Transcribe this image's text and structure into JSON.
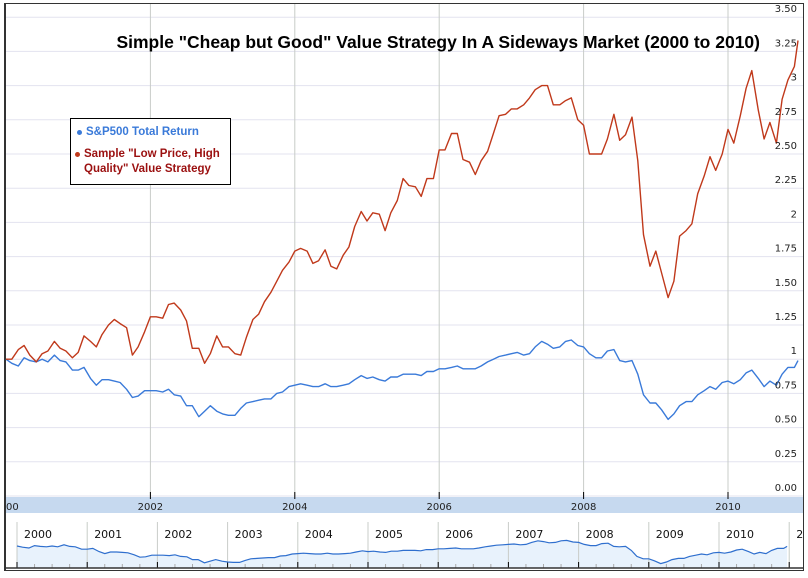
{
  "chart_data": {
    "type": "line",
    "title": "Simple \"Cheap but Good\" Value Strategy In A Sideways Market (2000 to 2010)",
    "xlabel": "",
    "ylabel": "",
    "xlim": [
      2000,
      2010.95
    ],
    "ylim": [
      0,
      3.5
    ],
    "grid": true,
    "legend_position": "left",
    "y_ticks": [
      {
        "value": 0,
        "label": "0.00"
      },
      {
        "value": 0.25,
        "label": "0.25"
      },
      {
        "value": 0.5,
        "label": "0.50"
      },
      {
        "value": 0.75,
        "label": "0.75"
      },
      {
        "value": 1,
        "label": "1"
      },
      {
        "value": 1.25,
        "label": "1.25"
      },
      {
        "value": 1.5,
        "label": "1.50"
      },
      {
        "value": 1.75,
        "label": "1.75"
      },
      {
        "value": 2,
        "label": "2"
      },
      {
        "value": 2.25,
        "label": "2.25"
      },
      {
        "value": 2.5,
        "label": "2.50"
      },
      {
        "value": 2.75,
        "label": "2.75"
      },
      {
        "value": 3,
        "label": "3"
      },
      {
        "value": 3.25,
        "label": "3.25"
      },
      {
        "value": 3.5,
        "label": "3.50"
      }
    ],
    "x_ticks": [
      {
        "value": 2000,
        "label": "00"
      },
      {
        "value": 2002,
        "label": "2002"
      },
      {
        "value": 2004,
        "label": "2004"
      },
      {
        "value": 2006,
        "label": "2006"
      },
      {
        "value": 2008,
        "label": "2008"
      },
      {
        "value": 2010,
        "label": "2010"
      }
    ],
    "navigator_ticks": [
      "2000",
      "2001",
      "2002",
      "2003",
      "2004",
      "2005",
      "2006",
      "2007",
      "2008",
      "2009",
      "2010",
      "2"
    ],
    "series": [
      {
        "name": "S&P500 Total Return",
        "color": "#3a7ad9",
        "points": [
          [
            2000.0,
            1.0
          ],
          [
            2000.08,
            0.97
          ],
          [
            2000.17,
            0.95
          ],
          [
            2000.25,
            1.01
          ],
          [
            2000.33,
            0.99
          ],
          [
            2000.42,
            0.98
          ],
          [
            2000.5,
            1.0
          ],
          [
            2000.58,
            0.98
          ],
          [
            2000.67,
            1.03
          ],
          [
            2000.75,
            0.99
          ],
          [
            2000.83,
            0.98
          ],
          [
            2000.92,
            0.92
          ],
          [
            2001.0,
            0.92
          ],
          [
            2001.08,
            0.94
          ],
          [
            2001.17,
            0.86
          ],
          [
            2001.25,
            0.81
          ],
          [
            2001.33,
            0.85
          ],
          [
            2001.42,
            0.85
          ],
          [
            2001.5,
            0.84
          ],
          [
            2001.58,
            0.83
          ],
          [
            2001.67,
            0.78
          ],
          [
            2001.75,
            0.72
          ],
          [
            2001.83,
            0.73
          ],
          [
            2001.92,
            0.77
          ],
          [
            2002.0,
            0.77
          ],
          [
            2002.08,
            0.77
          ],
          [
            2002.17,
            0.76
          ],
          [
            2002.25,
            0.78
          ],
          [
            2002.33,
            0.74
          ],
          [
            2002.42,
            0.73
          ],
          [
            2002.5,
            0.66
          ],
          [
            2002.58,
            0.66
          ],
          [
            2002.67,
            0.58
          ],
          [
            2002.75,
            0.62
          ],
          [
            2002.83,
            0.66
          ],
          [
            2002.92,
            0.62
          ],
          [
            2003.0,
            0.6
          ],
          [
            2003.08,
            0.59
          ],
          [
            2003.17,
            0.59
          ],
          [
            2003.25,
            0.64
          ],
          [
            2003.33,
            0.68
          ],
          [
            2003.42,
            0.69
          ],
          [
            2003.5,
            0.7
          ],
          [
            2003.58,
            0.71
          ],
          [
            2003.67,
            0.71
          ],
          [
            2003.75,
            0.75
          ],
          [
            2003.83,
            0.76
          ],
          [
            2003.92,
            0.8
          ],
          [
            2004.0,
            0.81
          ],
          [
            2004.08,
            0.82
          ],
          [
            2004.17,
            0.81
          ],
          [
            2004.25,
            0.8
          ],
          [
            2004.33,
            0.8
          ],
          [
            2004.42,
            0.82
          ],
          [
            2004.5,
            0.8
          ],
          [
            2004.58,
            0.8
          ],
          [
            2004.67,
            0.81
          ],
          [
            2004.75,
            0.82
          ],
          [
            2004.83,
            0.85
          ],
          [
            2004.92,
            0.88
          ],
          [
            2005.0,
            0.86
          ],
          [
            2005.08,
            0.87
          ],
          [
            2005.17,
            0.85
          ],
          [
            2005.25,
            0.84
          ],
          [
            2005.33,
            0.87
          ],
          [
            2005.42,
            0.87
          ],
          [
            2005.5,
            0.89
          ],
          [
            2005.58,
            0.89
          ],
          [
            2005.67,
            0.89
          ],
          [
            2005.75,
            0.88
          ],
          [
            2005.83,
            0.91
          ],
          [
            2005.92,
            0.91
          ],
          [
            2006.0,
            0.93
          ],
          [
            2006.08,
            0.93
          ],
          [
            2006.17,
            0.94
          ],
          [
            2006.25,
            0.95
          ],
          [
            2006.33,
            0.93
          ],
          [
            2006.42,
            0.93
          ],
          [
            2006.5,
            0.93
          ],
          [
            2006.58,
            0.95
          ],
          [
            2006.67,
            0.98
          ],
          [
            2006.75,
            1.0
          ],
          [
            2006.83,
            1.02
          ],
          [
            2006.92,
            1.03
          ],
          [
            2007.0,
            1.04
          ],
          [
            2007.08,
            1.05
          ],
          [
            2007.17,
            1.03
          ],
          [
            2007.25,
            1.04
          ],
          [
            2007.33,
            1.09
          ],
          [
            2007.42,
            1.13
          ],
          [
            2007.5,
            1.11
          ],
          [
            2007.58,
            1.08
          ],
          [
            2007.67,
            1.09
          ],
          [
            2007.75,
            1.13
          ],
          [
            2007.83,
            1.14
          ],
          [
            2007.92,
            1.1
          ],
          [
            2008.0,
            1.09
          ],
          [
            2008.08,
            1.04
          ],
          [
            2008.17,
            1.01
          ],
          [
            2008.25,
            1.01
          ],
          [
            2008.33,
            1.06
          ],
          [
            2008.42,
            1.07
          ],
          [
            2008.5,
            0.99
          ],
          [
            2008.58,
            0.98
          ],
          [
            2008.67,
            0.99
          ],
          [
            2008.75,
            0.89
          ],
          [
            2008.83,
            0.74
          ],
          [
            2008.92,
            0.68
          ],
          [
            2009.0,
            0.68
          ],
          [
            2009.08,
            0.63
          ],
          [
            2009.17,
            0.56
          ],
          [
            2009.25,
            0.6
          ],
          [
            2009.33,
            0.66
          ],
          [
            2009.42,
            0.69
          ],
          [
            2009.5,
            0.69
          ],
          [
            2009.58,
            0.74
          ],
          [
            2009.67,
            0.77
          ],
          [
            2009.75,
            0.8
          ],
          [
            2009.83,
            0.78
          ],
          [
            2009.92,
            0.83
          ],
          [
            2010.0,
            0.84
          ],
          [
            2010.08,
            0.82
          ],
          [
            2010.17,
            0.85
          ],
          [
            2010.25,
            0.9
          ],
          [
            2010.33,
            0.92
          ],
          [
            2010.42,
            0.86
          ],
          [
            2010.5,
            0.8
          ],
          [
            2010.58,
            0.84
          ],
          [
            2010.67,
            0.81
          ],
          [
            2010.75,
            0.89
          ],
          [
            2010.83,
            0.94
          ],
          [
            2010.92,
            0.94
          ],
          [
            2010.97,
            0.99
          ]
        ]
      },
      {
        "name": "Sample \"Low Price, High Quality\" Value Strategy",
        "color": "#c0391b",
        "points": [
          [
            2000.0,
            1.0
          ],
          [
            2000.08,
            1.0
          ],
          [
            2000.17,
            1.07
          ],
          [
            2000.25,
            1.1
          ],
          [
            2000.33,
            1.03
          ],
          [
            2000.42,
            0.98
          ],
          [
            2000.5,
            1.04
          ],
          [
            2000.58,
            1.06
          ],
          [
            2000.67,
            1.13
          ],
          [
            2000.75,
            1.08
          ],
          [
            2000.83,
            1.06
          ],
          [
            2000.92,
            1.01
          ],
          [
            2001.0,
            1.05
          ],
          [
            2001.08,
            1.17
          ],
          [
            2001.17,
            1.13
          ],
          [
            2001.25,
            1.09
          ],
          [
            2001.33,
            1.18
          ],
          [
            2001.42,
            1.25
          ],
          [
            2001.5,
            1.29
          ],
          [
            2001.58,
            1.26
          ],
          [
            2001.67,
            1.23
          ],
          [
            2001.75,
            1.03
          ],
          [
            2001.83,
            1.09
          ],
          [
            2001.92,
            1.2
          ],
          [
            2002.0,
            1.31
          ],
          [
            2002.08,
            1.31
          ],
          [
            2002.17,
            1.3
          ],
          [
            2002.25,
            1.4
          ],
          [
            2002.33,
            1.41
          ],
          [
            2002.42,
            1.36
          ],
          [
            2002.5,
            1.28
          ],
          [
            2002.58,
            1.08
          ],
          [
            2002.67,
            1.08
          ],
          [
            2002.75,
            0.97
          ],
          [
            2002.83,
            1.04
          ],
          [
            2002.92,
            1.17
          ],
          [
            2003.0,
            1.09
          ],
          [
            2003.08,
            1.09
          ],
          [
            2003.17,
            1.04
          ],
          [
            2003.25,
            1.03
          ],
          [
            2003.33,
            1.16
          ],
          [
            2003.42,
            1.29
          ],
          [
            2003.5,
            1.33
          ],
          [
            2003.58,
            1.42
          ],
          [
            2003.67,
            1.49
          ],
          [
            2003.75,
            1.57
          ],
          [
            2003.83,
            1.65
          ],
          [
            2003.92,
            1.71
          ],
          [
            2004.0,
            1.79
          ],
          [
            2004.08,
            1.81
          ],
          [
            2004.17,
            1.79
          ],
          [
            2004.25,
            1.7
          ],
          [
            2004.33,
            1.72
          ],
          [
            2004.42,
            1.8
          ],
          [
            2004.5,
            1.68
          ],
          [
            2004.58,
            1.66
          ],
          [
            2004.67,
            1.76
          ],
          [
            2004.75,
            1.82
          ],
          [
            2004.83,
            1.97
          ],
          [
            2004.92,
            2.08
          ],
          [
            2005.0,
            2.01
          ],
          [
            2005.08,
            2.07
          ],
          [
            2005.17,
            2.06
          ],
          [
            2005.25,
            1.94
          ],
          [
            2005.33,
            2.07
          ],
          [
            2005.42,
            2.16
          ],
          [
            2005.5,
            2.32
          ],
          [
            2005.58,
            2.27
          ],
          [
            2005.67,
            2.26
          ],
          [
            2005.75,
            2.19
          ],
          [
            2005.83,
            2.32
          ],
          [
            2005.92,
            2.32
          ],
          [
            2006.0,
            2.53
          ],
          [
            2006.08,
            2.53
          ],
          [
            2006.17,
            2.65
          ],
          [
            2006.25,
            2.65
          ],
          [
            2006.33,
            2.46
          ],
          [
            2006.42,
            2.44
          ],
          [
            2006.5,
            2.35
          ],
          [
            2006.58,
            2.45
          ],
          [
            2006.67,
            2.52
          ],
          [
            2006.75,
            2.65
          ],
          [
            2006.83,
            2.78
          ],
          [
            2006.92,
            2.79
          ],
          [
            2007.0,
            2.83
          ],
          [
            2007.08,
            2.83
          ],
          [
            2007.17,
            2.86
          ],
          [
            2007.25,
            2.91
          ],
          [
            2007.33,
            2.97
          ],
          [
            2007.42,
            3.0
          ],
          [
            2007.5,
            3.0
          ],
          [
            2007.58,
            2.86
          ],
          [
            2007.67,
            2.86
          ],
          [
            2007.75,
            2.89
          ],
          [
            2007.83,
            2.91
          ],
          [
            2007.92,
            2.75
          ],
          [
            2008.0,
            2.71
          ],
          [
            2008.08,
            2.5
          ],
          [
            2008.17,
            2.5
          ],
          [
            2008.25,
            2.5
          ],
          [
            2008.33,
            2.61
          ],
          [
            2008.42,
            2.79
          ],
          [
            2008.5,
            2.6
          ],
          [
            2008.58,
            2.64
          ],
          [
            2008.67,
            2.77
          ],
          [
            2008.75,
            2.45
          ],
          [
            2008.83,
            1.91
          ],
          [
            2008.92,
            1.68
          ],
          [
            2009.0,
            1.79
          ],
          [
            2009.08,
            1.63
          ],
          [
            2009.17,
            1.45
          ],
          [
            2009.25,
            1.57
          ],
          [
            2009.33,
            1.9
          ],
          [
            2009.42,
            1.94
          ],
          [
            2009.5,
            1.99
          ],
          [
            2009.58,
            2.21
          ],
          [
            2009.67,
            2.34
          ],
          [
            2009.75,
            2.48
          ],
          [
            2009.83,
            2.38
          ],
          [
            2009.92,
            2.5
          ],
          [
            2010.0,
            2.68
          ],
          [
            2010.08,
            2.58
          ],
          [
            2010.17,
            2.78
          ],
          [
            2010.25,
            2.98
          ],
          [
            2010.33,
            3.11
          ],
          [
            2010.42,
            2.82
          ],
          [
            2010.5,
            2.61
          ],
          [
            2010.58,
            2.73
          ],
          [
            2010.67,
            2.58
          ],
          [
            2010.75,
            2.9
          ],
          [
            2010.83,
            3.04
          ],
          [
            2010.92,
            3.14
          ],
          [
            2010.97,
            3.33
          ]
        ]
      }
    ]
  },
  "legend": {
    "items": [
      {
        "label": "S&P500 Total Return",
        "color": "#3a7ad9",
        "text_color": "#3a7ad9"
      },
      {
        "label": "Sample \"Low Price, High Quality\" Value Strategy",
        "color": "#c0391b",
        "text_color": "#9b1010"
      }
    ]
  },
  "colors": {
    "grid": "#e3e3ef",
    "year_line": "#c8ccc8",
    "axis_band": "#c6d9ef",
    "navigator_fill": "#e8f2fc",
    "navigator_line": "#2f6fce"
  }
}
